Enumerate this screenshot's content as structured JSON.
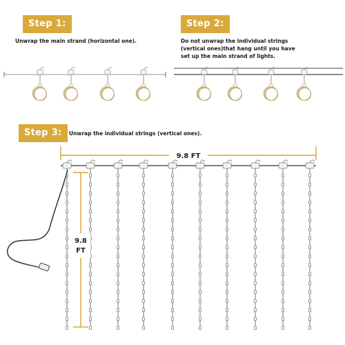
{
  "step1": {
    "badge": "Step 1:",
    "text": "Unwrap the main strand (horizontal one)."
  },
  "step2": {
    "badge": "Step 2:",
    "text_lines": [
      "Do not unwrap the individual strings",
      "(vertical ones)that hang until you have",
      "set up the main strand of lights."
    ]
  },
  "step3": {
    "badge": "Step 3:",
    "text": "Unwrap the individual strings (vertical ones)."
  },
  "dimensions": {
    "width_label": "9.8 FT",
    "height_value": "9.8",
    "height_unit": "FT"
  },
  "colors": {
    "accent": "#d9a93a",
    "wire": "#555555",
    "coil": "#c8b27a",
    "dim_line": "#d9a93a"
  }
}
